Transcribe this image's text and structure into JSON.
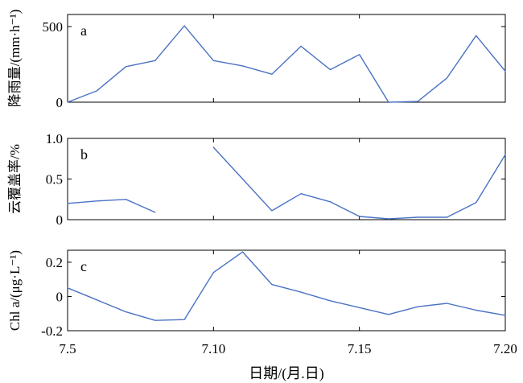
{
  "chart_data": {
    "type": "line",
    "xlabel": "日期/(月.日)",
    "x_ticks": [
      "7.5",
      "7.10",
      "7.15",
      "7.20"
    ],
    "x": [
      5,
      6,
      7,
      8,
      9,
      10,
      11,
      12,
      13,
      14,
      15,
      16,
      17,
      18,
      19,
      20
    ],
    "xlim": [
      5,
      20
    ],
    "line_color": "#4a72c4",
    "panels": [
      {
        "label": "a",
        "ylabel": "降雨量/(mm·h⁻¹)",
        "ylim": [
          0,
          580
        ],
        "y_ticks": [
          "0",
          "500"
        ],
        "y_tick_values": [
          0,
          500
        ],
        "values": [
          0,
          75,
          235,
          275,
          505,
          275,
          240,
          185,
          370,
          215,
          315,
          0,
          5,
          160,
          440,
          205
        ]
      },
      {
        "label": "b",
        "ylabel": "云覆盖率/%",
        "ylim": [
          0,
          1.0
        ],
        "y_ticks": [
          "0",
          "0.5",
          "1.0"
        ],
        "y_tick_values": [
          0,
          0.5,
          1.0
        ],
        "values": [
          0.2,
          0.23,
          0.25,
          0.09,
          null,
          0.89,
          0.5,
          0.11,
          0.32,
          0.22,
          0.04,
          0.01,
          0.03,
          0.03,
          0.21,
          0.8
        ]
      },
      {
        "label": "c",
        "ylabel": "Chl a/(μg·L⁻¹)",
        "ylim": [
          -0.2,
          0.27
        ],
        "y_ticks": [
          "-0.2",
          "0",
          "0.2"
        ],
        "y_tick_values": [
          -0.2,
          0,
          0.2
        ],
        "values": [
          0.05,
          -0.02,
          -0.09,
          -0.14,
          -0.135,
          0.14,
          0.26,
          0.07,
          0.025,
          -0.025,
          -0.065,
          -0.105,
          -0.06,
          -0.04,
          -0.08,
          -0.11
        ]
      }
    ]
  }
}
